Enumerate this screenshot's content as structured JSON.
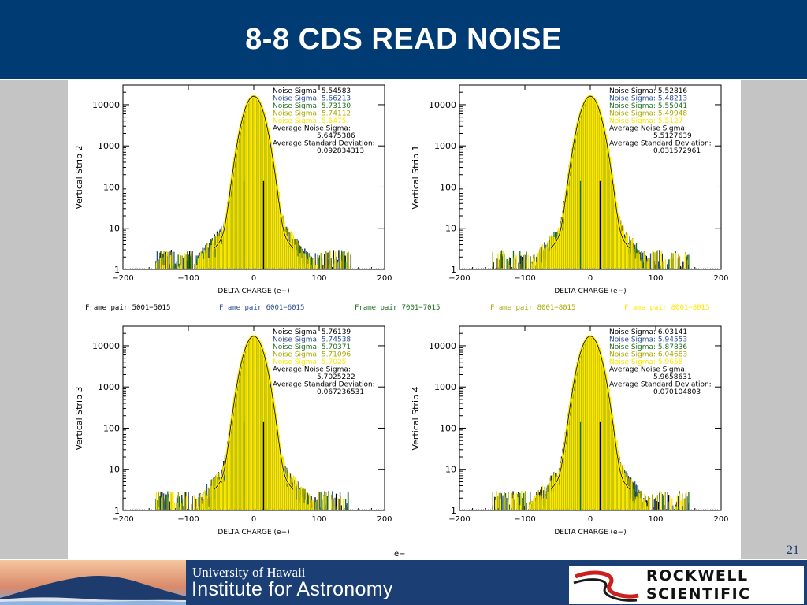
{
  "slide": {
    "title": "8-8 CDS READ NOISE",
    "page_number": "21",
    "stray_label": "e−",
    "colors": {
      "title_bar": "#003b73",
      "footer": "#1b3f74",
      "figure_bg": "#ffffff",
      "side_gray": "#bdbdbd"
    }
  },
  "legend": [
    {
      "label": "Frame pair 5001−5015",
      "color": "#000000"
    },
    {
      "label": "Frame pair 6001−6015",
      "color": "#2a4d8f"
    },
    {
      "label": "Frame pair 7001−7015",
      "color": "#1d6e1d"
    },
    {
      "label": "Frame pair 8001−8015",
      "color": "#a8a800"
    },
    {
      "label": "Frame pair 8001−8015",
      "color": "#ffe800"
    }
  ],
  "footer": {
    "university": "University of Hawaii",
    "institute": "Institute for Astronomy",
    "company_line1": "ROCKWELL",
    "company_line2": "SCIENTIFIC"
  },
  "chart_data": [
    {
      "type": "histogram",
      "panel": "Vertical Strip 2",
      "ylabel": "Vertical Strip 2",
      "xlabel": "DELTA CHARGE (e−)",
      "xlim": [
        -200,
        200
      ],
      "ylim": [
        1,
        30000
      ],
      "yscale": "log",
      "xticks": [
        "−200",
        "−100",
        "0",
        "100",
        "200"
      ],
      "yticks": [
        "1",
        "10",
        "100",
        "1000",
        "10000"
      ],
      "peak": 16000,
      "bar_markers": [
        -15,
        15
      ],
      "bar_height": 140,
      "annotations": {
        "noise_sigma_label": "Noise Sigma:",
        "noise_sigma": [
          "5.54583",
          "5.66213",
          "5.73130",
          "5.74112"
        ],
        "noise_sigma_hidden": "5.6475",
        "average_noise_sigma_label": "Average Noise Sigma:",
        "average_noise_sigma": "5.6475386",
        "avg_std_dev_label": "Average Standard Deviation:",
        "avg_std_dev": "0.092834313"
      }
    },
    {
      "type": "histogram",
      "panel": "Vertical Strip 1",
      "ylabel": "Vertical Strip 1",
      "xlabel": "DELTA CHARGE (e−)",
      "xlim": [
        -200,
        200
      ],
      "ylim": [
        1,
        30000
      ],
      "yscale": "log",
      "xticks": [
        "−200",
        "−100",
        "0",
        "100",
        "200"
      ],
      "yticks": [
        "1",
        "10",
        "100",
        "1000",
        "10000"
      ],
      "peak": 16000,
      "bar_markers": [
        -15,
        15
      ],
      "bar_height": 140,
      "annotations": {
        "noise_sigma_label": "Noise Sigma:",
        "noise_sigma": [
          "5.52816",
          "5.48213",
          "5.55041",
          "5.49948"
        ],
        "noise_sigma_hidden": "5.5127",
        "average_noise_sigma_label": "Average Noise Sigma:",
        "average_noise_sigma": "5.5127639",
        "avg_std_dev_label": "Average Standard Deviation:",
        "avg_std_dev": "0.031572961"
      }
    },
    {
      "type": "histogram",
      "panel": "Vertical Strip 3",
      "ylabel": "Vertical Strip 3",
      "xlabel": "DELTA CHARGE (e−)",
      "xlim": [
        -200,
        200
      ],
      "ylim": [
        1,
        30000
      ],
      "yscale": "log",
      "xticks": [
        "−200",
        "−100",
        "0",
        "100",
        "200"
      ],
      "yticks": [
        "1",
        "10",
        "100",
        "1000",
        "10000"
      ],
      "peak": 17000,
      "bar_markers": [
        -15,
        15
      ],
      "bar_height": 140,
      "annotations": {
        "noise_sigma_label": "Noise Sigma:",
        "noise_sigma": [
          "5.76139",
          "5.74538",
          "5.70371",
          "5.71096"
        ],
        "noise_sigma_hidden": "5.7025",
        "average_noise_sigma_label": "Average Noise Sigma:",
        "average_noise_sigma": "5.7025222",
        "avg_std_dev_label": "Average Standard Deviation:",
        "avg_std_dev": "0.067236531"
      }
    },
    {
      "type": "histogram",
      "panel": "Vertical Strip 4",
      "ylabel": "Vertical Strip 4",
      "xlabel": "DELTA CHARGE (e−)",
      "xlim": [
        -200,
        200
      ],
      "ylim": [
        1,
        30000
      ],
      "yscale": "log",
      "xticks": [
        "−200",
        "−100",
        "0",
        "100",
        "200"
      ],
      "yticks": [
        "1",
        "10",
        "100",
        "1000",
        "10000"
      ],
      "peak": 17000,
      "bar_markers": [
        -15,
        15
      ],
      "bar_height": 140,
      "annotations": {
        "noise_sigma_label": "Noise Sigma:",
        "noise_sigma": [
          "6.03141",
          "5.94553",
          "5.87836",
          "6.04683"
        ],
        "noise_sigma_hidden": "5.9658",
        "average_noise_sigma_label": "Average Noise Sigma:",
        "average_noise_sigma": "5.9658631",
        "avg_std_dev_label": "Average Standard Deviation:",
        "avg_std_dev": "0.070104803"
      }
    }
  ]
}
